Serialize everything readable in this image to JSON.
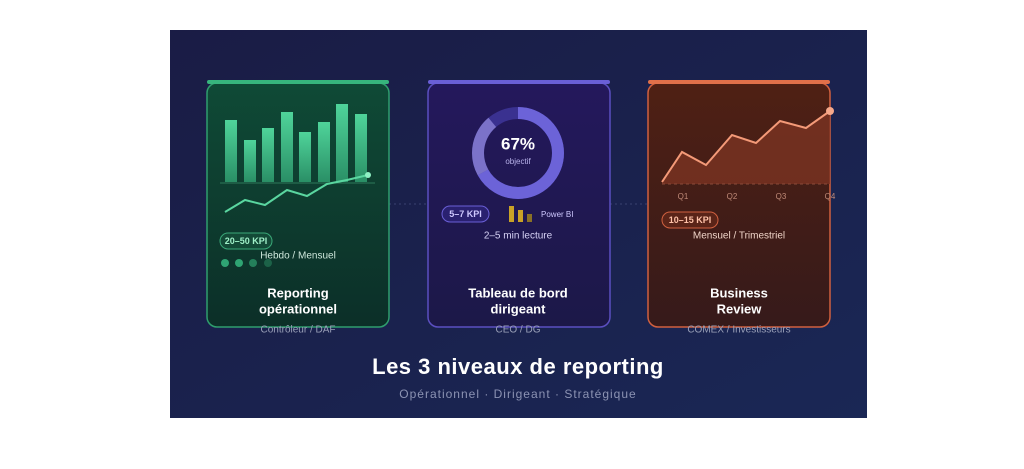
{
  "cards": [
    {
      "kpi": "20–50 KPI",
      "frequency": "Hebdo / Mensuel",
      "title": [
        "Reporting",
        "opérationnel"
      ],
      "audience": "Contrôleur / DAF"
    },
    {
      "donut_value": "67%",
      "donut_label": "objectif",
      "kpi": "5–7 KPI",
      "tool": "Power BI",
      "reading": "2–5 min lecture",
      "title": [
        "Tableau de bord",
        "dirigeant"
      ],
      "audience": "CEO / DG"
    },
    {
      "quarters": [
        "Q1",
        "Q2",
        "Q3",
        "Q4"
      ],
      "kpi": "10–15 KPI",
      "frequency": "Mensuel / Trimestriel",
      "title": [
        "Business",
        "Review"
      ],
      "audience": "COMEX / Investisseurs"
    }
  ],
  "title": "Les 3 niveaux de reporting",
  "subtitle": "Opérationnel · Dirigeant · Stratégique"
}
